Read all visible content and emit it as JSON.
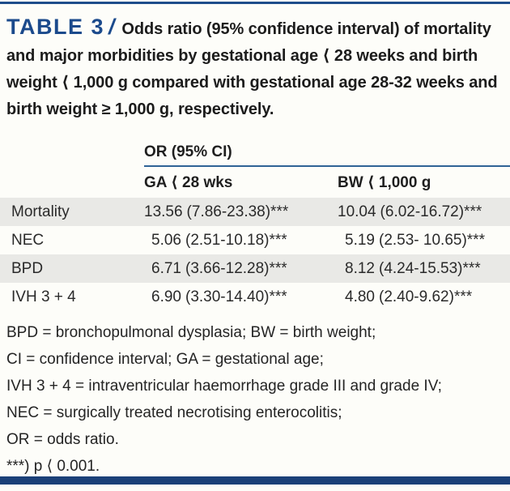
{
  "page": {
    "background": "#fdfdf9",
    "accent_navy": "#1b4a8c",
    "rule_blue": "#2f6496",
    "row_gray": "#e9e9e6",
    "bottom_bar_navy": "#1b4078"
  },
  "header": {
    "label": "TABLE 3",
    "slash": "/",
    "title": "Odds ratio (95% confidence interval) of mortality and major morbidities by gestational age ⟨ 28 weeks and birth weight ⟨ 1,000 g compared with gestational age 28-32 weeks and birth weight ≥ 1,000 g, respectively."
  },
  "table": {
    "group_header": "OR (95% CI)",
    "columns": [
      "GA ⟨ 28 wks",
      "BW ⟨ 1,000 g"
    ],
    "rows": [
      {
        "label": "Mortality",
        "ga_or": "13.56",
        "ga_ci": "(7.86-23.38)***",
        "bw_or": "10.04",
        "bw_ci": "(6.02-16.72)***"
      },
      {
        "label": "NEC",
        "ga_or": "5.06",
        "ga_ci": "(2.51-10.18)***",
        "bw_or": "5.19",
        "bw_ci": "(2.53- 10.65)***"
      },
      {
        "label": "BPD",
        "ga_or": "6.71",
        "ga_ci": "(3.66-12.28)***",
        "bw_or": "8.12",
        "bw_ci": "(4.24-15.53)***"
      },
      {
        "label": "IVH 3 + 4",
        "ga_or": "6.90",
        "ga_ci": "(3.30-14.40)***",
        "bw_or": "4.80",
        "bw_ci": "(2.40-9.62)***"
      }
    ]
  },
  "chart_data": {
    "type": "table",
    "title": "TABLE 3 / Odds ratio (95% confidence interval) of mortality and major morbidities by gestational age ⟨ 28 weeks and birth weight ⟨ 1,000 g compared with gestational age 28-32 weeks and birth weight ≥ 1,000 g, respectively.",
    "columns": [
      "",
      "GA ⟨ 28 wks",
      "BW ⟨ 1,000 g"
    ],
    "rows": [
      [
        "Mortality",
        "13.56 (7.86-23.38)***",
        "10.04 (6.02-16.72)***"
      ],
      [
        "NEC",
        "5.06 (2.51-10.18)***",
        "5.19 (2.53- 10.65)***"
      ],
      [
        "BPD",
        "6.71 (3.66-12.28)***",
        "8.12 (4.24-15.53)***"
      ],
      [
        "IVH 3 + 4",
        "6.90 (3.30-14.40)***",
        "4.80 (2.40-9.62)***"
      ]
    ]
  },
  "footnotes": [
    "BPD = bronchopulmonal dysplasia; BW = birth weight;",
    "CI = confidence interval; GA = gestational age;",
    "IVH 3 + 4 = intraventricular haemorrhage grade III and grade IV;",
    "NEC = surgically treated necrotising enterocolitis;",
    "OR = odds ratio.",
    "***) p ⟨ 0.001."
  ]
}
